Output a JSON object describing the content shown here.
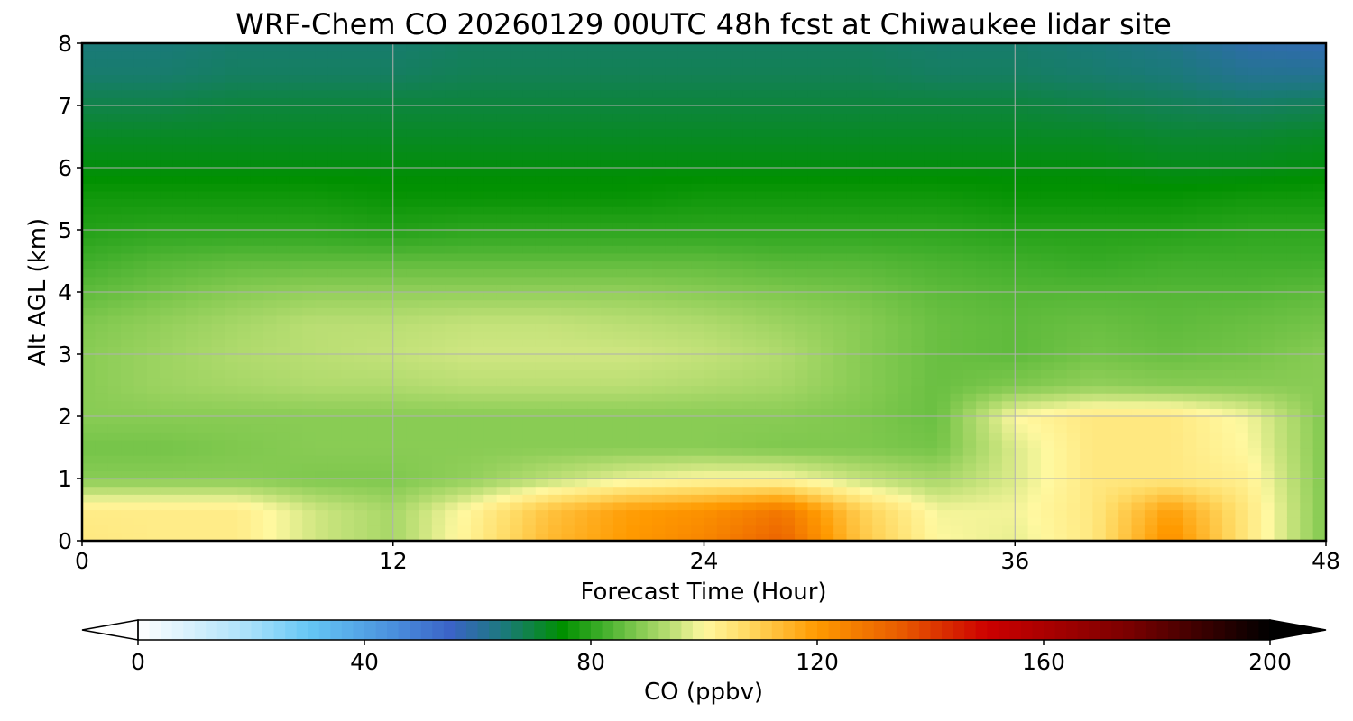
{
  "chart_data": {
    "type": "heatmap",
    "title": "WRF-Chem CO  20260129 00UTC 48h fcst at Chiwaukee lidar site",
    "xlabel": "Forecast Time (Hour)",
    "ylabel": "Alt AGL (km)",
    "xlim": [
      0,
      48
    ],
    "ylim": [
      0,
      8
    ],
    "xticks": [
      0,
      12,
      24,
      36,
      48
    ],
    "yticks": [
      0,
      1,
      2,
      3,
      4,
      5,
      6,
      7,
      8
    ],
    "grid": true,
    "x_hours": [
      0,
      3,
      6,
      9,
      12,
      15,
      18,
      21,
      24,
      27,
      30,
      33,
      36,
      39,
      42,
      45,
      48
    ],
    "y_km": [
      0,
      0.5,
      1,
      1.5,
      2,
      2.5,
      3,
      3.5,
      4,
      4.5,
      5,
      5.5,
      6,
      6.5,
      7,
      7.5,
      8
    ],
    "values_ppbv": [
      [
        104,
        103,
        103,
        96,
        92,
        102,
        114,
        120,
        125,
        133,
        112,
        100,
        98,
        104,
        123,
        104,
        88
      ],
      [
        103,
        103,
        103,
        96,
        92,
        101,
        112,
        119,
        122,
        128,
        110,
        99,
        99,
        104,
        119,
        104,
        88
      ],
      [
        89,
        89,
        89,
        88,
        88,
        90,
        94,
        98,
        100,
        100,
        95,
        92,
        97,
        104,
        104,
        102,
        88
      ],
      [
        87,
        87,
        88,
        89,
        89,
        89,
        89,
        89,
        89,
        88,
        88,
        87,
        97,
        104,
        104,
        100,
        88
      ],
      [
        89,
        89,
        89,
        89,
        89,
        89,
        89,
        89,
        89,
        89,
        88,
        86,
        100,
        104,
        104,
        99,
        88
      ],
      [
        89,
        91,
        92,
        93,
        93,
        94,
        94,
        94,
        93,
        92,
        89,
        86,
        88,
        90,
        89,
        89,
        89
      ],
      [
        89,
        91,
        93,
        94,
        95,
        96,
        96,
        96,
        95,
        93,
        89,
        86,
        85,
        87,
        86,
        87,
        89
      ],
      [
        88,
        90,
        92,
        94,
        94,
        95,
        95,
        94,
        93,
        91,
        89,
        86,
        85,
        86,
        85,
        86,
        87
      ],
      [
        85,
        87,
        89,
        90,
        90,
        90,
        90,
        90,
        89,
        88,
        87,
        85,
        84,
        84,
        84,
        84,
        85
      ],
      [
        82,
        84,
        85,
        85,
        85,
        85,
        85,
        85,
        85,
        84,
        84,
        83,
        82,
        81,
        82,
        82,
        82
      ],
      [
        79,
        80,
        80,
        80,
        79,
        80,
        80,
        80,
        80,
        80,
        80,
        80,
        79,
        79,
        79,
        80,
        80
      ],
      [
        77,
        77,
        77,
        77,
        76,
        76,
        76,
        76,
        77,
        77,
        77,
        77,
        76,
        76,
        76,
        77,
        77
      ],
      [
        74,
        74,
        74,
        74,
        74,
        74,
        74,
        74,
        74,
        74,
        74,
        74,
        74,
        74,
        73,
        73,
        74
      ],
      [
        72,
        72,
        72,
        72,
        72,
        72,
        72,
        72,
        72,
        72,
        72,
        72,
        72,
        72,
        71,
        71,
        72
      ],
      [
        69,
        69,
        70,
        70,
        70,
        70,
        70,
        70,
        70,
        70,
        70,
        70,
        70,
        69,
        68,
        67,
        68
      ],
      [
        66,
        66,
        67,
        67,
        67,
        68,
        68,
        68,
        68,
        68,
        68,
        67,
        67,
        66,
        65,
        62,
        62
      ],
      [
        65,
        65,
        66,
        66,
        66,
        67,
        67,
        67,
        67,
        67,
        67,
        66,
        66,
        65,
        63,
        59,
        58
      ]
    ],
    "colorbar": {
      "label": "CO  (ppbv)",
      "ticks": [
        0,
        40,
        80,
        120,
        160,
        200
      ],
      "range": [
        0,
        200
      ],
      "extend": "both"
    }
  }
}
